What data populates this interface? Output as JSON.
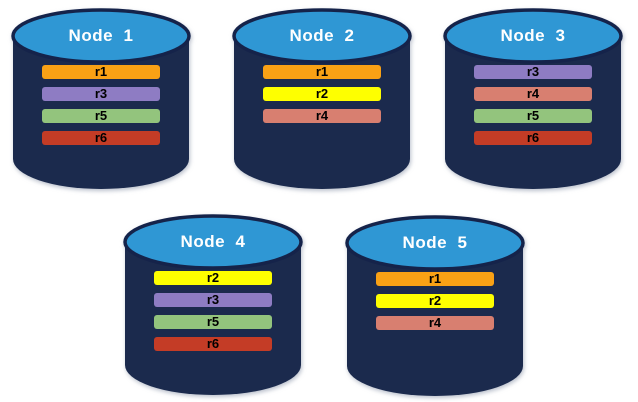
{
  "palette": {
    "body": "#1b2a4d",
    "ellipse_fill": "#2f97d4",
    "ellipse_stroke": "#15234a",
    "title_color": "#ffffff",
    "bar_text": "#000000"
  },
  "replica_colors": {
    "r1": "#f9a115",
    "r2": "#feff00",
    "r3": "#8e7cc3",
    "r4": "#d87f70",
    "r5": "#93c47d",
    "r6": "#c43c26"
  },
  "nodes": [
    {
      "title": "Node  1",
      "replicas": [
        "r1",
        "r3",
        "r5",
        "r6"
      ]
    },
    {
      "title": "Node  2",
      "replicas": [
        "r1",
        "r2",
        "r4"
      ]
    },
    {
      "title": "Node  3",
      "replicas": [
        "r3",
        "r4",
        "r5",
        "r6"
      ]
    },
    {
      "title": "Node  4",
      "replicas": [
        "r2",
        "r3",
        "r5",
        "r6"
      ]
    },
    {
      "title": "Node  5",
      "replicas": [
        "r1",
        "r2",
        "r4"
      ]
    }
  ]
}
